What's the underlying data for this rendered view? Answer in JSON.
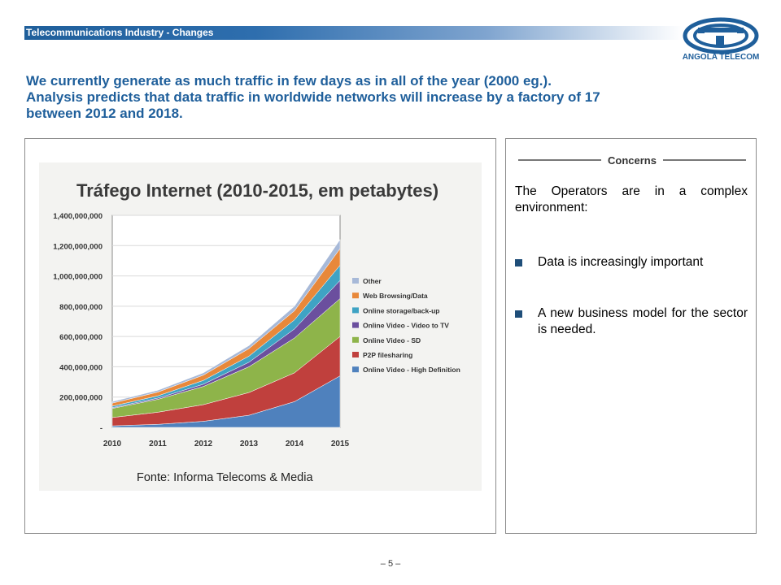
{
  "header": {
    "title": "Telecommunications Industry - Changes"
  },
  "logo": {
    "text": "ANGOLA TELECOM",
    "icon": "angola-telecom-logo"
  },
  "headline": {
    "lines": [
      "We currently generate as much traffic in few days as in all of the year (2000 eg.).",
      "Analysis predicts that data traffic in worldwide networks will increase by a factory of 17",
      "between 2012 and 2018."
    ]
  },
  "concerns": {
    "heading": "Concerns",
    "intro": "The Operators are in a complex environment:",
    "bullets": [
      "Data is increasingly important",
      "A new business model for the sector is needed."
    ]
  },
  "page_number": "– 5 –",
  "colors": {
    "brand_blue": "#1f5f9b",
    "other": "#a7b9d8",
    "web": "#e8883a",
    "storage": "#3fa3c4",
    "video_tv": "#6b4f9e",
    "sd": "#8eb44a",
    "p2p": "#c0403d",
    "hd": "#4f81bd"
  },
  "chart_data": {
    "type": "area",
    "title": "Tráfego Internet (2010-2015, em petabytes)",
    "source": "Fonte: Informa Telecoms & Media",
    "stacked": true,
    "categories": [
      "2010",
      "2011",
      "2012",
      "2013",
      "2014",
      "2015"
    ],
    "ylim": [
      0,
      1400000000
    ],
    "yticks": [
      "-",
      "200,000,000",
      "400,000,000",
      "600,000,000",
      "800,000,000",
      "1,000,000,000",
      "1,200,000,000",
      "1,400,000,000"
    ],
    "grid": true,
    "legend_position": "right",
    "series": [
      {
        "name": "Online Video - High Definition",
        "color": "#4f81bd",
        "values": [
          10000000,
          20000000,
          40000000,
          80000000,
          170000000,
          340000000
        ]
      },
      {
        "name": "P2P filesharing",
        "color": "#c0403d",
        "values": [
          55000000,
          80000000,
          110000000,
          150000000,
          190000000,
          260000000
        ]
      },
      {
        "name": "Online Video - SD",
        "color": "#8eb44a",
        "values": [
          60000000,
          85000000,
          120000000,
          170000000,
          230000000,
          250000000
        ]
      },
      {
        "name": "Online Video - Video to TV",
        "color": "#6b4f9e",
        "values": [
          5000000,
          8000000,
          15000000,
          30000000,
          60000000,
          120000000
        ]
      },
      {
        "name": "Online storage/back-up",
        "color": "#3fa3c4",
        "values": [
          10000000,
          15000000,
          25000000,
          40000000,
          60000000,
          100000000
        ]
      },
      {
        "name": "Web Browsing/Data",
        "color": "#e8883a",
        "values": [
          20000000,
          25000000,
          35000000,
          50000000,
          60000000,
          110000000
        ]
      },
      {
        "name": "Other",
        "color": "#a7b9d8",
        "values": [
          10000000,
          12000000,
          15000000,
          20000000,
          30000000,
          60000000
        ]
      }
    ]
  }
}
